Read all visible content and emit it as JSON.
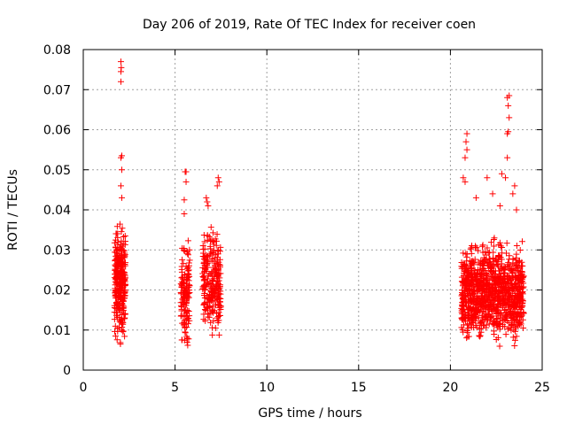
{
  "chart_data": {
    "type": "scatter",
    "title": "Day 206 of 2019, Rate Of TEC Index for receiver coen",
    "xlabel": "GPS time / hours",
    "ylabel": "ROTI / TECUs",
    "xlim": [
      0,
      25
    ],
    "ylim": [
      0,
      0.08
    ],
    "x_ticks": [
      0,
      5,
      10,
      15,
      20,
      25
    ],
    "x_tick_labels": [
      "0",
      "5",
      "10",
      "15",
      "20",
      "25"
    ],
    "y_ticks": [
      0,
      0.01,
      0.02,
      0.03,
      0.04,
      0.05,
      0.06,
      0.07,
      0.08
    ],
    "y_tick_labels": [
      "0",
      "0.01",
      "0.02",
      "0.03",
      "0.04",
      "0.05",
      "0.06",
      "0.07",
      "0.08"
    ],
    "grid": true,
    "marker": "+",
    "marker_color": "#ff0000",
    "clusters": [
      {
        "name": "cluster-1",
        "x_range": [
          1.7,
          2.3
        ],
        "y_range": [
          0.004,
          0.04
        ],
        "count": 300,
        "extra_points": [
          [
            2.05,
            0.077
          ],
          [
            2.07,
            0.0755
          ],
          [
            2.05,
            0.0745
          ],
          [
            2.05,
            0.072
          ],
          [
            2.1,
            0.0535
          ],
          [
            2.05,
            0.053
          ],
          [
            2.1,
            0.05
          ],
          [
            2.05,
            0.046
          ],
          [
            2.1,
            0.043
          ],
          [
            1.75,
            0.026
          ],
          [
            1.8,
            0.024
          ]
        ]
      },
      {
        "name": "cluster-2",
        "x_range": [
          5.3,
          5.8
        ],
        "y_range": [
          0.003,
          0.036
        ],
        "count": 140,
        "extra_points": [
          [
            5.55,
            0.0495
          ],
          [
            5.6,
            0.0495
          ],
          [
            5.6,
            0.047
          ],
          [
            5.5,
            0.0425
          ],
          [
            5.5,
            0.039
          ]
        ]
      },
      {
        "name": "cluster-3",
        "x_range": [
          6.5,
          7.5
        ],
        "y_range": [
          0.004,
          0.038
        ],
        "count": 260,
        "extra_points": [
          [
            7.35,
            0.048
          ],
          [
            7.4,
            0.047
          ],
          [
            7.3,
            0.046
          ],
          [
            6.7,
            0.043
          ],
          [
            6.75,
            0.042
          ],
          [
            6.8,
            0.041
          ]
        ]
      },
      {
        "name": "cluster-4",
        "x_range": [
          20.6,
          24.0
        ],
        "y_range": [
          0.004,
          0.035
        ],
        "count": 1100,
        "extra_points": [
          [
            20.9,
            0.059
          ],
          [
            20.85,
            0.057
          ],
          [
            20.9,
            0.055
          ],
          [
            20.8,
            0.053
          ],
          [
            23.1,
            0.068
          ],
          [
            23.2,
            0.0685
          ],
          [
            23.15,
            0.066
          ],
          [
            23.2,
            0.063
          ],
          [
            23.15,
            0.0595
          ],
          [
            23.1,
            0.059
          ],
          [
            23.1,
            0.053
          ],
          [
            22.8,
            0.049
          ],
          [
            23.0,
            0.048
          ],
          [
            22.0,
            0.048
          ],
          [
            20.7,
            0.048
          ],
          [
            20.8,
            0.047
          ],
          [
            23.5,
            0.046
          ],
          [
            23.4,
            0.044
          ],
          [
            22.3,
            0.044
          ],
          [
            21.4,
            0.043
          ],
          [
            22.7,
            0.041
          ],
          [
            23.6,
            0.04
          ]
        ]
      }
    ]
  }
}
